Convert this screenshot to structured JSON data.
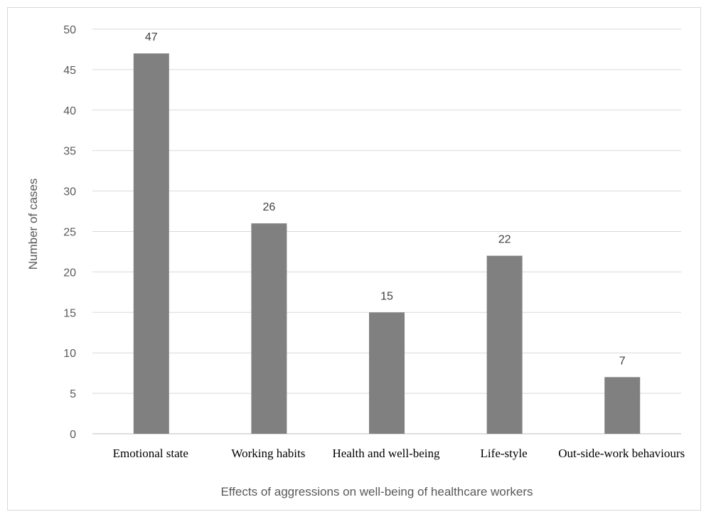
{
  "chart_data": {
    "type": "bar",
    "categories": [
      "Emotional state",
      "Working habits",
      "Health and well-being",
      "Life-style",
      "Out-side-work behaviours"
    ],
    "values": [
      47,
      26,
      15,
      22,
      7
    ],
    "title": "",
    "xlabel": "Effects  of aggressions on well-being of healthcare workers",
    "ylabel": "Number  of cases",
    "ylim": [
      0,
      50
    ],
    "yticks": [
      0,
      5,
      10,
      15,
      20,
      25,
      30,
      35,
      40,
      45,
      50
    ],
    "grid": true,
    "legend": "none",
    "data_labels": true,
    "colors": {
      "bar": "#808080",
      "grid": "#d9d9d9",
      "axis": "#bfbfbf"
    }
  }
}
